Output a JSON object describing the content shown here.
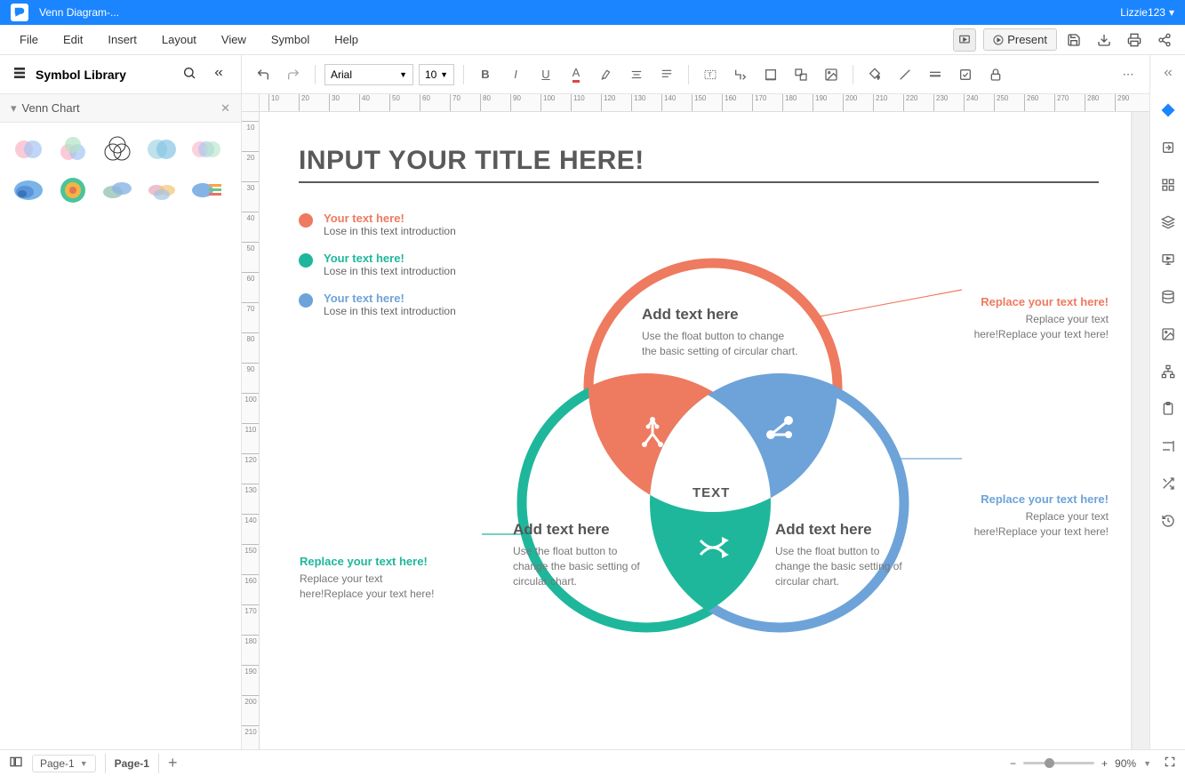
{
  "titlebar": {
    "doc_title": "Venn Diagram-...",
    "user": "Lizzie123"
  },
  "menu": {
    "items": [
      "File",
      "Edit",
      "Insert",
      "Layout",
      "View",
      "Symbol",
      "Help"
    ],
    "present": "Present"
  },
  "sidebar": {
    "title": "Symbol Library",
    "section": "Venn Chart"
  },
  "toolbar": {
    "font": "Arial",
    "size": "10"
  },
  "ruler": {
    "h": [
      "10",
      "20",
      "30",
      "40",
      "50",
      "60",
      "70",
      "80",
      "90",
      "100",
      "110",
      "120",
      "130",
      "140",
      "150",
      "160",
      "170",
      "180",
      "190",
      "200",
      "210",
      "220",
      "230",
      "240",
      "250",
      "260",
      "270",
      "280",
      "290"
    ],
    "v": [
      "10",
      "20",
      "30",
      "40",
      "50",
      "60",
      "70",
      "80",
      "90",
      "100",
      "110",
      "120",
      "130",
      "140",
      "150",
      "160",
      "170",
      "180",
      "190",
      "200",
      "210"
    ]
  },
  "canvas": {
    "title": "INPUT YOUR TITLE HERE!",
    "colors": {
      "red": "#ee7a5f",
      "teal": "#1fb79b",
      "blue": "#6da3d8",
      "text": "#5a5a5a"
    },
    "legend": [
      {
        "color": "#ee7a5f",
        "title": "Your text here!",
        "sub": "Lose in this text introduction"
      },
      {
        "color": "#1fb79b",
        "title": "Your text here!",
        "sub": "Lose in this text introduction"
      },
      {
        "color": "#6da3d8",
        "title": "Your text here!",
        "sub": "Lose in this text introduction"
      }
    ],
    "venn": {
      "center_label": "TEXT",
      "circles": [
        {
          "heading": "Add text here",
          "body": "Use the float button to change the basic setting of circular chart."
        },
        {
          "heading": "Add text here",
          "body": "Use the float button to change the basic setting of circular chart."
        },
        {
          "heading": "Add text here",
          "body": "Use the float button to change the basic setting of circular chart."
        }
      ],
      "callouts": [
        {
          "color": "#ee7a5f",
          "title": "Replace your text here!",
          "body": "Replace your text here!Replace your text here!"
        },
        {
          "color": "#6da3d8",
          "title": "Replace your text here!",
          "body": "Replace your text here!Replace your text here!"
        },
        {
          "color": "#1fb79b",
          "title": "Replace your text here!",
          "body": "Replace your text here!Replace your text here!"
        }
      ]
    }
  },
  "status": {
    "page_sel": "Page-1",
    "page_tab": "Page-1",
    "zoom": "90%"
  }
}
